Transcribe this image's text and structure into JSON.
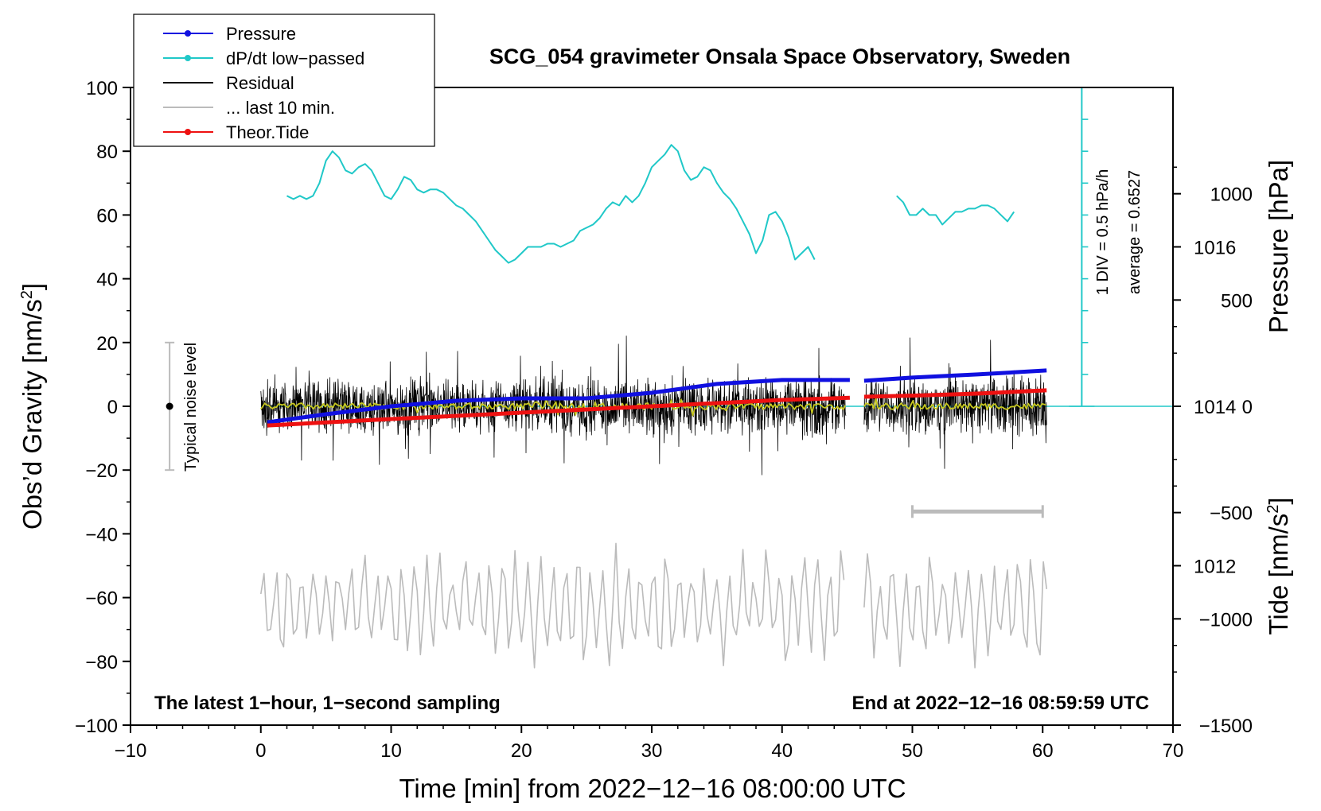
{
  "chart_data": {
    "type": "line",
    "title": "SCG_054 gravimeter Onsala Space Observatory, Sweden",
    "xlabel": "Time [min] from 2022−12−16 08:00:00 UTC",
    "ylabel_left": "Obs’d Gravity [nm/s",
    "ylabel_left_sup": "2",
    "ylabel_left_end": "]",
    "ylabel_right_pressure": "Pressure [hPa]",
    "ylabel_right_tide": "Tide [nm/s",
    "ylabel_right_tide_sup": "2",
    "ylabel_right_tide_end": "]",
    "xlim": [
      -10,
      70
    ],
    "ylim": [
      -100,
      100
    ],
    "x_ticks": [
      {
        "value": -10,
        "label": "−10"
      },
      {
        "value": 0,
        "label": "0"
      },
      {
        "value": 10,
        "label": "10"
      },
      {
        "value": 20,
        "label": "20"
      },
      {
        "value": 30,
        "label": "30"
      },
      {
        "value": 40,
        "label": "40"
      },
      {
        "value": 50,
        "label": "50"
      },
      {
        "value": 60,
        "label": "60"
      },
      {
        "value": 70,
        "label": "70"
      }
    ],
    "y_ticks": [
      {
        "value": 100,
        "label": "100"
      },
      {
        "value": 80,
        "label": "80"
      },
      {
        "value": 60,
        "label": "60"
      },
      {
        "value": 40,
        "label": "40"
      },
      {
        "value": 20,
        "label": "20"
      },
      {
        "value": 0,
        "label": "0"
      },
      {
        "value": -20,
        "label": "−20"
      },
      {
        "value": -40,
        "label": "−40"
      },
      {
        "value": -60,
        "label": "−60"
      },
      {
        "value": -80,
        "label": "−80"
      },
      {
        "value": -100,
        "label": "−100"
      }
    ],
    "pressure_axis": {
      "ylim": [
        1010,
        1018
      ],
      "ticks": [
        {
          "value": 1016,
          "label": "1016"
        },
        {
          "value": 1014,
          "label": "1014"
        },
        {
          "value": 1012,
          "label": "1012"
        }
      ]
    },
    "tide_axis": {
      "ylim": [
        -1500,
        1500
      ],
      "ticks": [
        {
          "value": 1000,
          "label": "1000"
        },
        {
          "value": 500,
          "label": "500"
        },
        {
          "value": 0,
          "label": "0"
        },
        {
          "value": -500,
          "label": "−500"
        },
        {
          "value": -1000,
          "label": "−1000"
        },
        {
          "value": -1500,
          "label": "−1500"
        }
      ]
    },
    "legend": [
      {
        "name": "Pressure",
        "color": "#1010e0",
        "marker": true
      },
      {
        "name": "dP/dt low−passed",
        "color": "#20c8c8",
        "marker": true
      },
      {
        "name": "Residual",
        "color": "#000000",
        "marker": false
      },
      {
        "name": "... last 10 min.",
        "color": "#bbbbbb",
        "marker": false
      },
      {
        "name": "Theor.Tide",
        "color": "#ee1111",
        "marker": true
      }
    ],
    "series": [
      {
        "name": "Pressure",
        "axis": "pressure",
        "color": "#1010e0",
        "segments": [
          {
            "x": [
              0.5,
              5,
              10,
              15,
              20,
              25,
              30,
              35,
              40,
              45.2
            ],
            "y": [
              1013.8,
              1013.9,
              1014.0,
              1014.07,
              1014.1,
              1014.1,
              1014.17,
              1014.28,
              1014.33,
              1014.33
            ]
          },
          {
            "x": [
              46.3,
              50,
              55,
              60.3
            ],
            "y": [
              1014.32,
              1014.36,
              1014.4,
              1014.45
            ]
          }
        ]
      },
      {
        "name": "dP/dt low−passed",
        "axis": "gravity",
        "color": "#20c8c8",
        "segments": [
          {
            "x": [
              2,
              2.5,
              3,
              3.5,
              4,
              4.5,
              5,
              5.5,
              6,
              6.5,
              7,
              7.5,
              8,
              8.5,
              9,
              9.5,
              10,
              10.5,
              11,
              11.5,
              12,
              12.5,
              13,
              13.5,
              14,
              14.5,
              15,
              15.5,
              16,
              16.5,
              17,
              17.5,
              18,
              18.5,
              19,
              19.5,
              20,
              20.5,
              21,
              21.5,
              22,
              22.5,
              23,
              23.5,
              24,
              24.5,
              25,
              25.5,
              26,
              26.5,
              27,
              27.5,
              28,
              28.5,
              29,
              29.5,
              30,
              30.5,
              31,
              31.5,
              32,
              32.5,
              33,
              33.5,
              34,
              34.5,
              35,
              35.5,
              36,
              36.5,
              37,
              37.5,
              38,
              38.5,
              39,
              39.5,
              40,
              40.5,
              41,
              41.5,
              42,
              42.5
            ],
            "y": [
              66,
              65,
              66,
              65,
              66,
              70,
              77,
              80,
              78,
              74,
              73,
              75,
              76,
              74,
              70,
              66,
              65,
              68,
              72,
              71,
              68,
              67,
              68,
              68,
              67,
              65,
              63,
              62,
              60,
              58,
              55,
              52,
              49,
              47,
              45,
              46,
              48,
              50,
              50,
              50,
              51,
              51,
              50,
              51,
              52,
              55,
              56,
              57,
              59,
              62,
              64,
              63,
              66,
              64,
              66,
              70,
              75,
              77,
              79,
              82,
              80,
              74,
              71,
              72,
              75,
              74,
              70,
              67,
              65,
              62,
              58,
              54,
              48,
              52,
              60,
              61,
              58,
              53,
              46,
              48,
              50,
              46
            ]
          },
          {
            "x": [
              48.8,
              49.3,
              49.8,
              50.3,
              50.8,
              51.3,
              51.8,
              52.3,
              52.8,
              53.3,
              53.8,
              54.3,
              54.8,
              55.3,
              55.8,
              56.3,
              56.8,
              57.3,
              57.8
            ],
            "y": [
              66,
              64,
              60,
              60,
              62,
              60,
              60,
              57,
              59,
              61,
              61,
              62,
              62,
              63,
              63,
              62,
              60,
              58,
              61
            ]
          }
        ]
      },
      {
        "name": "Residual",
        "axis": "gravity",
        "color": "#000000",
        "range": [
          -28,
          33
        ],
        "segments": [
          {
            "start": 0,
            "end": 44.9
          },
          {
            "start": 46.3,
            "end": 60.3
          }
        ]
      },
      {
        "name": "Residual low−passed",
        "axis": "gravity",
        "color": "#c8c820",
        "range": [
          -6,
          5
        ],
        "segments": [
          {
            "start": 0,
            "end": 44.9
          },
          {
            "start": 46.3,
            "end": 60.3
          }
        ]
      },
      {
        "name": "... last 10 min.",
        "axis": "gravity",
        "color": "#bbbbbb",
        "range": [
          -82,
          -43
        ],
        "segments": [
          {
            "start": 0,
            "end": 44.9
          },
          {
            "start": 46.3,
            "end": 60.3
          }
        ]
      },
      {
        "name": "Theor.Tide",
        "axis": "tide",
        "color": "#ee1111",
        "segments": [
          {
            "x": [
              0.5,
              10,
              20,
              30,
              40,
              45.2
            ],
            "y": [
              -90,
              -60,
              -30,
              0,
              30,
              40
            ]
          },
          {
            "x": [
              46.3,
              50,
              55,
              60.3
            ],
            "y": [
              45,
              50,
              60,
              75
            ]
          }
        ]
      }
    ],
    "pressure_reference": {
      "value": 1014,
      "label_div": "1 DIV = 0.5 hPa/h",
      "label_avg": "average = 0.6527"
    },
    "noise_bar": {
      "label": "Typical noise level",
      "x": -7,
      "y_low": -20,
      "y_high": 20
    },
    "ten_min_bar": {
      "x_start": 50,
      "x_end": 60,
      "y": -33
    },
    "footer_left": "The latest 1−hour, 1−second sampling",
    "footer_right": "End at 2022−12−16 08:59:59 UTC"
  }
}
